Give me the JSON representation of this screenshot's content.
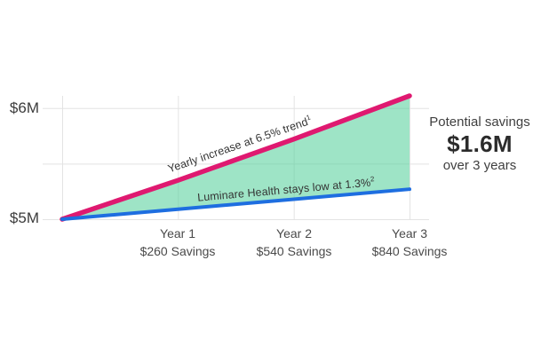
{
  "chart_data": {
    "type": "area",
    "title": "",
    "x": [
      0,
      1,
      2,
      3
    ],
    "x_axis": {
      "ticks": [
        {
          "label": "Year 1",
          "sublabel": "$260 Savings"
        },
        {
          "label": "Year 2",
          "sublabel": "$540 Savings"
        },
        {
          "label": "Year 3",
          "sublabel": "$840 Savings"
        }
      ]
    },
    "y_axis": {
      "unit": "$M",
      "range": [
        5.0,
        6.11
      ],
      "ticks": [
        {
          "value": 6.0,
          "label": "$6M"
        },
        {
          "value": 5.0,
          "label": "$5M"
        }
      ],
      "gridlines": [
        6.0,
        5.5,
        5.0
      ]
    },
    "series": [
      {
        "name": "yearly-increase-trend",
        "label": "Yearly increase at 6.5% trend",
        "label_sup": "1",
        "color": "#df1970",
        "values": [
          5.0,
          5.35,
          5.72,
          6.11
        ]
      },
      {
        "name": "luminare-health",
        "label": "Luminare Health stays low at 1.3%",
        "label_sup": "2",
        "color": "#1e6ee0",
        "values": [
          5.0,
          5.09,
          5.18,
          5.27
        ]
      }
    ],
    "fill": {
      "between": "series",
      "color": "rgba(88,209,156,0.58)"
    },
    "grid_color": "#e3e3e3",
    "legend": "none",
    "grid": "on"
  },
  "summary": {
    "line1": "Potential savings",
    "amount": "$1.6M",
    "line2": "over 3 years"
  }
}
